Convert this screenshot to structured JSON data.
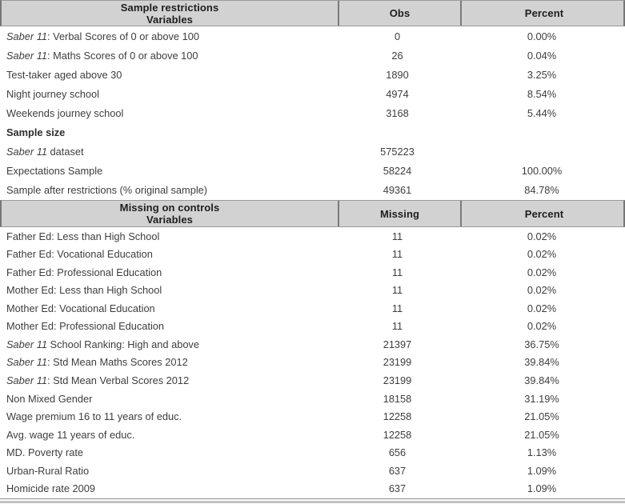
{
  "colors": {
    "header_bg": "#d2d2d2",
    "header_text": "#1e1e1e",
    "row_text": "#3e3e3e",
    "divider": "#7c7c7c",
    "bottom_rule_dark": "#8f8f8f",
    "bottom_rule_light": "#c2c2c2"
  },
  "table1": {
    "header": {
      "col1_line1": "Sample restrictions",
      "col1_line2": "Variables",
      "col2": "Obs",
      "col3": "Percent"
    },
    "rows": [
      {
        "italic": "Saber 11",
        "label": ": Verbal Scores of 0 or above 100",
        "value": "0",
        "percent": "0.00%"
      },
      {
        "italic": "Saber 11",
        "label": ": Maths Scores of 0 or above 100",
        "value": "26",
        "percent": "0.04%"
      },
      {
        "italic": "",
        "label": "Test-taker aged above 30",
        "value": "1890",
        "percent": "3.25%"
      },
      {
        "italic": "",
        "label": "Night journey school",
        "value": "4974",
        "percent": "8.54%"
      },
      {
        "italic": "",
        "label": "Weekends journey school",
        "value": "3168",
        "percent": "5.44%"
      },
      {
        "italic": "",
        "label": "Sample size",
        "bold": true,
        "value": "",
        "percent": ""
      },
      {
        "italic": "Saber 11",
        "label": " dataset",
        "value": "575223",
        "percent": ""
      },
      {
        "italic": "",
        "label": "Expectations Sample",
        "value": "58224",
        "percent": "100.00%"
      },
      {
        "italic": "",
        "label": "Sample after restrictions (% original sample)",
        "value": "49361",
        "percent": "84.78%"
      }
    ]
  },
  "table2": {
    "header": {
      "col1_line1": "Missing on controls",
      "col1_line2": "Variables",
      "col2": "Missing",
      "col3": "Percent"
    },
    "rows": [
      {
        "italic": "",
        "label": "Father Ed: Less than High School",
        "value": "11",
        "percent": "0.02%"
      },
      {
        "italic": "",
        "label": "Father Ed: Vocational Education",
        "value": "11",
        "percent": "0.02%"
      },
      {
        "italic": "",
        "label": "Father Ed: Professional Education",
        "value": "11",
        "percent": "0.02%"
      },
      {
        "italic": "",
        "label": "Mother Ed: Less than High School",
        "value": "11",
        "percent": "0.02%"
      },
      {
        "italic": "",
        "label": "Mother Ed: Vocational Education",
        "value": "11",
        "percent": "0.02%"
      },
      {
        "italic": "",
        "label": "Mother Ed: Professional Education",
        "value": "11",
        "percent": "0.02%"
      },
      {
        "italic": "Saber 11",
        "label": " School Ranking: High and above",
        "value": "21397",
        "percent": "36.75%"
      },
      {
        "italic": "Saber 11",
        "label": ": Std Mean Maths Scores 2012",
        "value": "23199",
        "percent": "39.84%"
      },
      {
        "italic": "Saber 11",
        "label": ": Std Mean Verbal Scores 2012",
        "value": "23199",
        "percent": "39.84%"
      },
      {
        "italic": "",
        "label": "Non Mixed Gender",
        "value": "18158",
        "percent": "31.19%"
      },
      {
        "italic": "",
        "label": "Wage premium 16 to 11 years of educ.",
        "value": "12258",
        "percent": "21.05%"
      },
      {
        "italic": "",
        "label": "Avg. wage 11 years of educ.",
        "value": "12258",
        "percent": "21.05%"
      },
      {
        "italic": "",
        "label": "MD. Poverty rate",
        "value": "656",
        "percent": "1.13%"
      },
      {
        "italic": "",
        "label": "Urban-Rural Ratio",
        "value": "637",
        "percent": "1.09%"
      },
      {
        "italic": "",
        "label": "Homicide rate 2009",
        "value": "637",
        "percent": "1.09%"
      }
    ]
  }
}
